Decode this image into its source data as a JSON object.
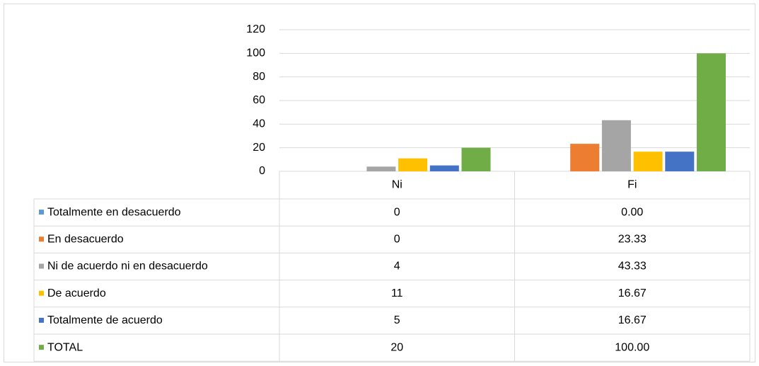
{
  "chart_data": {
    "type": "bar",
    "categories": [
      "Ni",
      "Fi"
    ],
    "series": [
      {
        "name": "Totalmente en desacuerdo",
        "color": "#5b9bd5",
        "values": [
          0,
          0
        ],
        "value_labels": [
          "0",
          "0.00"
        ]
      },
      {
        "name": "En desacuerdo",
        "color": "#ed7d31",
        "values": [
          0,
          23.33
        ],
        "value_labels": [
          "0",
          "23.33"
        ]
      },
      {
        "name": "Ni de acuerdo ni en desacuerdo",
        "color": "#a5a5a5",
        "values": [
          4,
          43.33
        ],
        "value_labels": [
          "4",
          "43.33"
        ]
      },
      {
        "name": "De acuerdo",
        "color": "#ffc000",
        "values": [
          11,
          16.67
        ],
        "value_labels": [
          "11",
          "16.67"
        ]
      },
      {
        "name": "Totalmente de acuerdo",
        "color": "#4472c4",
        "values": [
          5,
          16.67
        ],
        "value_labels": [
          "5",
          "16.67"
        ]
      },
      {
        "name": "TOTAL",
        "color": "#70ad47",
        "values": [
          20,
          100
        ],
        "value_labels": [
          "20",
          "100.00"
        ]
      }
    ],
    "ylim": [
      0,
      120
    ],
    "yticks": [
      0,
      20,
      40,
      60,
      80,
      100,
      120
    ],
    "grid": true
  }
}
